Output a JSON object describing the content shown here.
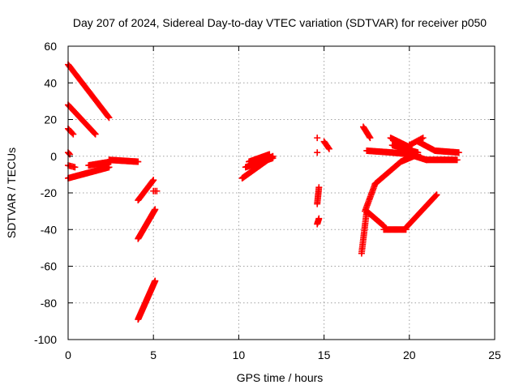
{
  "chart_data": {
    "type": "scatter",
    "title": "Day 207 of 2024, Sidereal Day-to-day VTEC variation (SDTVAR) for receiver p050",
    "xlabel": "GPS time / hours",
    "ylabel": "SDTVAR / TECUs",
    "xlim": [
      0,
      25
    ],
    "ylim": [
      -100,
      60
    ],
    "xticks": [
      0,
      5,
      10,
      15,
      20,
      25
    ],
    "yticks": [
      -100,
      -80,
      -60,
      -40,
      -20,
      0,
      20,
      40,
      60
    ],
    "grid": true,
    "marker": "+",
    "marker_color": "#ff0000",
    "segments": [
      {
        "x0": 0.0,
        "y0": 50,
        "x1": 2.4,
        "y1": 21,
        "n": 60
      },
      {
        "x0": 0.0,
        "y0": 28,
        "x1": 1.6,
        "y1": 12,
        "n": 40
      },
      {
        "x0": 0.0,
        "y0": 15,
        "x1": 0.3,
        "y1": 12,
        "n": 6
      },
      {
        "x0": 0.0,
        "y0": 2,
        "x1": 0.1,
        "y1": 1,
        "n": 3
      },
      {
        "x0": 0.0,
        "y0": -5,
        "x1": 0.4,
        "y1": -6,
        "n": 6
      },
      {
        "x0": 0.0,
        "y0": -12,
        "x1": 2.4,
        "y1": -6,
        "n": 60
      },
      {
        "x0": 1.2,
        "y0": -5,
        "x1": 2.5,
        "y1": -3,
        "n": 30
      },
      {
        "x0": 2.4,
        "y0": -2,
        "x1": 4.1,
        "y1": -3,
        "n": 40
      },
      {
        "x0": 4.1,
        "y0": -24,
        "x1": 5.0,
        "y1": -13,
        "n": 25
      },
      {
        "x0": 4.1,
        "y0": -45,
        "x1": 5.1,
        "y1": -29,
        "n": 40
      },
      {
        "x0": 4.1,
        "y0": -89,
        "x1": 5.1,
        "y1": -68,
        "n": 55
      },
      {
        "x0": 5.0,
        "y0": -19,
        "x1": 5.2,
        "y1": -19,
        "n": 3
      },
      {
        "x0": 10.2,
        "y0": -12,
        "x1": 12.0,
        "y1": 0,
        "n": 50
      },
      {
        "x0": 10.4,
        "y0": -6,
        "x1": 12.0,
        "y1": -1,
        "n": 40
      },
      {
        "x0": 10.6,
        "y0": -3,
        "x1": 11.8,
        "y1": 1,
        "n": 30
      },
      {
        "x0": 14.6,
        "y0": -26,
        "x1": 14.7,
        "y1": -17,
        "n": 12
      },
      {
        "x0": 14.6,
        "y0": -37,
        "x1": 14.7,
        "y1": -34,
        "n": 6
      },
      {
        "x0": 14.6,
        "y0": 10,
        "x1": 14.6,
        "y1": 10,
        "n": 1
      },
      {
        "x0": 14.6,
        "y0": 2,
        "x1": 14.6,
        "y1": 2,
        "n": 1
      },
      {
        "x0": 15.0,
        "y0": 8,
        "x1": 15.3,
        "y1": 4,
        "n": 8
      },
      {
        "x0": 17.3,
        "y0": 16,
        "x1": 17.7,
        "y1": 10,
        "n": 12
      },
      {
        "x0": 17.2,
        "y0": -53,
        "x1": 17.5,
        "y1": -30,
        "n": 25
      },
      {
        "x0": 17.5,
        "y0": -30,
        "x1": 18.5,
        "y1": -38,
        "n": 30
      },
      {
        "x0": 18.5,
        "y0": -40,
        "x1": 19.8,
        "y1": -40,
        "n": 25
      },
      {
        "x0": 19.8,
        "y0": -39,
        "x1": 21.6,
        "y1": -21,
        "n": 45
      },
      {
        "x0": 17.4,
        "y0": -30,
        "x1": 18.0,
        "y1": -15,
        "n": 20
      },
      {
        "x0": 18.0,
        "y0": -15,
        "x1": 19.5,
        "y1": -3,
        "n": 35
      },
      {
        "x0": 19.5,
        "y0": -3,
        "x1": 20.5,
        "y1": 1,
        "n": 25
      },
      {
        "x0": 17.5,
        "y0": 3,
        "x1": 19.0,
        "y1": 2,
        "n": 30
      },
      {
        "x0": 19.0,
        "y0": 2,
        "x1": 20.0,
        "y1": 1,
        "n": 20
      },
      {
        "x0": 20.0,
        "y0": 1,
        "x1": 21.0,
        "y1": -2,
        "n": 25
      },
      {
        "x0": 21.0,
        "y0": -2,
        "x1": 22.8,
        "y1": -2,
        "n": 35
      },
      {
        "x0": 18.9,
        "y0": 10,
        "x1": 20.0,
        "y1": 5,
        "n": 25
      },
      {
        "x0": 19.0,
        "y0": 6,
        "x1": 20.5,
        "y1": 2,
        "n": 30
      },
      {
        "x0": 20.5,
        "y0": 8,
        "x1": 21.5,
        "y1": 3,
        "n": 20
      },
      {
        "x0": 21.5,
        "y0": 3,
        "x1": 22.9,
        "y1": 2,
        "n": 30
      },
      {
        "x0": 20.0,
        "y0": 6,
        "x1": 20.8,
        "y1": 10,
        "n": 12
      }
    ]
  }
}
